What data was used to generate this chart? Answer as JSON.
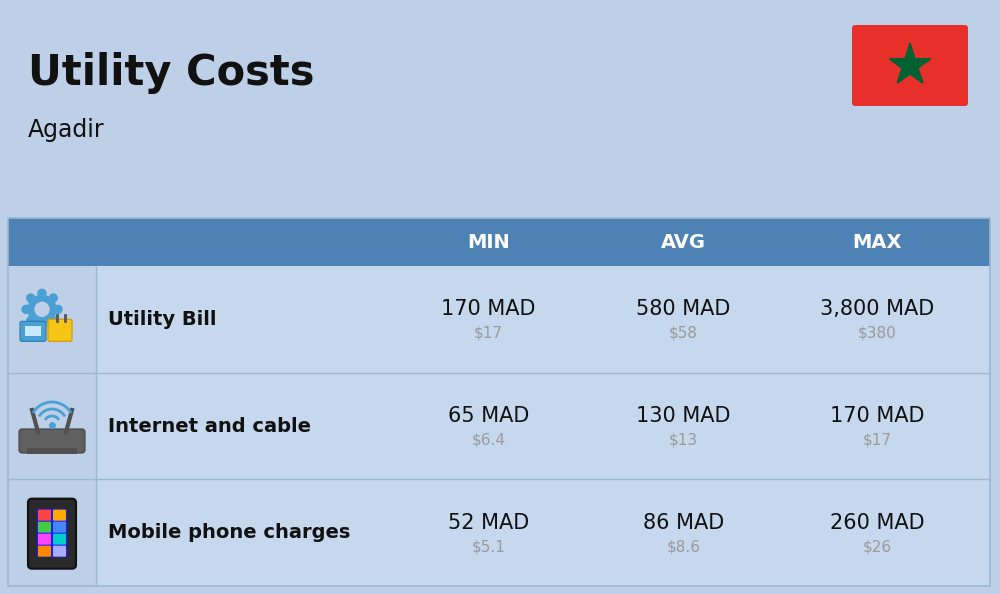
{
  "title": "Utility Costs",
  "subtitle": "Agadir",
  "background_color": "#bdd0e8",
  "header_color": "#4e82b4",
  "header_text_color": "#ffffff",
  "row_color": "#c5d8ed",
  "icon_col_color": "#bdd0e8",
  "divider_color": "#9ab8d0",
  "col_headers": [
    "MIN",
    "AVG",
    "MAX"
  ],
  "rows": [
    {
      "label": "Utility Bill",
      "icon": "utility",
      "min_mad": "170 MAD",
      "min_usd": "$17",
      "avg_mad": "580 MAD",
      "avg_usd": "$58",
      "max_mad": "3,800 MAD",
      "max_usd": "$380"
    },
    {
      "label": "Internet and cable",
      "icon": "internet",
      "min_mad": "65 MAD",
      "min_usd": "$6.4",
      "avg_mad": "130 MAD",
      "avg_usd": "$13",
      "max_mad": "170 MAD",
      "max_usd": "$17"
    },
    {
      "label": "Mobile phone charges",
      "icon": "mobile",
      "min_mad": "52 MAD",
      "min_usd": "$5.1",
      "avg_mad": "86 MAD",
      "avg_usd": "$8.6",
      "max_mad": "260 MAD",
      "max_usd": "$26"
    }
  ],
  "flag_color_red": "#e8302a",
  "flag_color_green": "#006233",
  "text_dark": "#111111",
  "text_gray": "#9a9a9a",
  "title_fontsize": 30,
  "subtitle_fontsize": 17,
  "header_fontsize": 14,
  "label_fontsize": 14,
  "value_fontsize": 15,
  "usd_fontsize": 11
}
